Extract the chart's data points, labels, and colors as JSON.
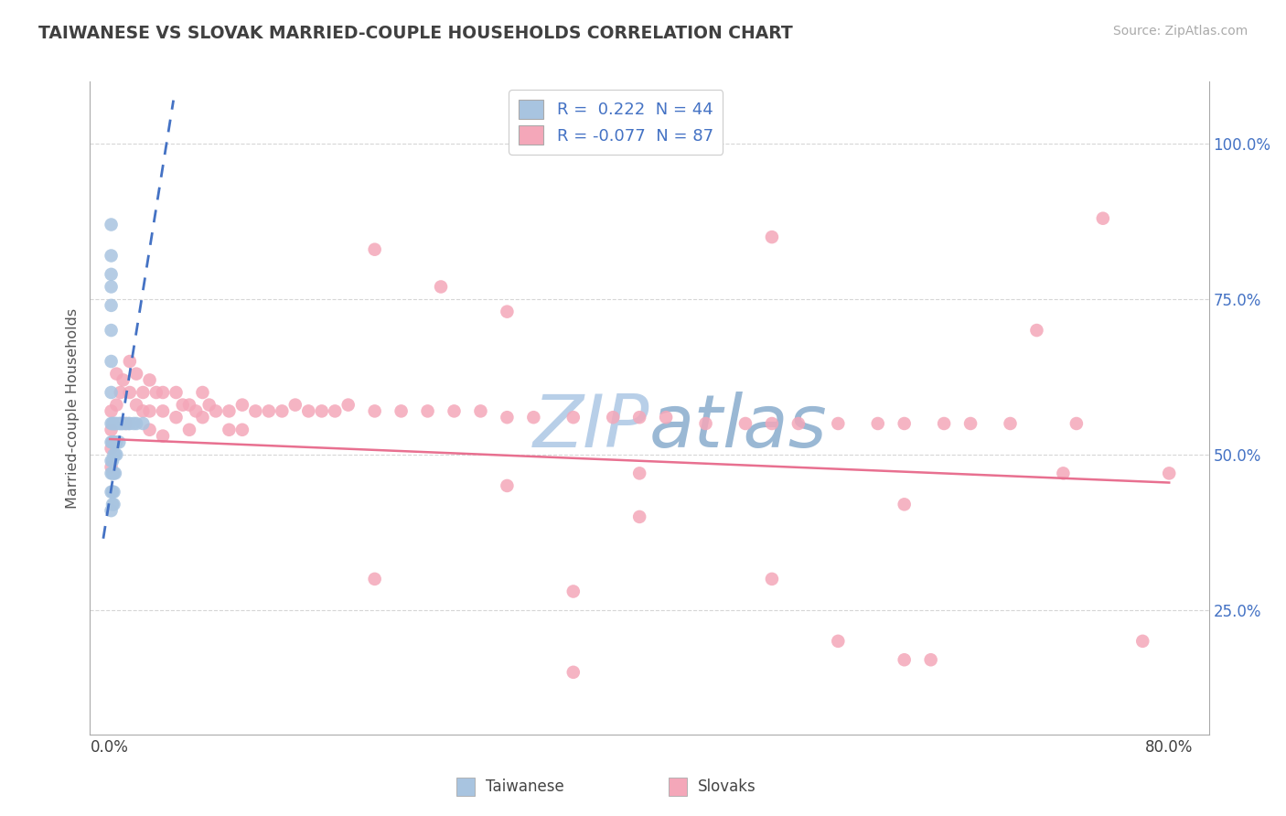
{
  "title": "TAIWANESE VS SLOVAK MARRIED-COUPLE HOUSEHOLDS CORRELATION CHART",
  "source": "Source: ZipAtlas.com",
  "ylabel": "Married-couple Households",
  "ytick_labels": [
    "25.0%",
    "50.0%",
    "75.0%",
    "100.0%"
  ],
  "ytick_values": [
    0.25,
    0.5,
    0.75,
    1.0
  ],
  "xtick_labels": [
    "0.0%",
    "80.0%"
  ],
  "xtick_values": [
    0.0,
    0.8
  ],
  "xlim": [
    -0.015,
    0.83
  ],
  "ylim": [
    0.05,
    1.1
  ],
  "legend_label1": "R =  0.222  N = 44",
  "legend_label2": "R = -0.077  N = 87",
  "legend_group1": "Taiwanese",
  "legend_group2": "Slovaks",
  "color_taiwanese": "#a8c4e0",
  "color_slovak": "#f4a7b9",
  "color_trend1": "#4472c4",
  "color_trend2": "#e87090",
  "watermark_color": "#ccd9e8",
  "background_color": "#ffffff",
  "grid_color": "#cccccc",
  "title_color": "#404040",
  "axis_label_color": "#555555",
  "ytick_color": "#4472c4",
  "xtick_color": "#404040",
  "legend_text_color": "#4472c4",
  "legend_r_eq_color": "#333333",
  "tw_trend_x": [
    -0.005,
    0.048
  ],
  "tw_trend_y": [
    0.365,
    1.07
  ],
  "sk_trend_x": [
    0.0,
    0.8
  ],
  "sk_trend_y": [
    0.525,
    0.455
  ],
  "taiwanese_x": [
    0.001,
    0.001,
    0.001,
    0.001,
    0.001,
    0.001,
    0.001,
    0.001,
    0.001,
    0.001,
    0.001,
    0.001,
    0.001,
    0.001,
    0.002,
    0.002,
    0.002,
    0.002,
    0.002,
    0.002,
    0.003,
    0.003,
    0.003,
    0.003,
    0.003,
    0.003,
    0.004,
    0.004,
    0.004,
    0.004,
    0.005,
    0.005,
    0.005,
    0.007,
    0.007,
    0.008,
    0.009,
    0.01,
    0.012,
    0.014,
    0.015,
    0.018,
    0.02,
    0.025
  ],
  "taiwanese_y": [
    0.87,
    0.82,
    0.79,
    0.77,
    0.74,
    0.7,
    0.65,
    0.6,
    0.55,
    0.52,
    0.49,
    0.47,
    0.44,
    0.41,
    0.55,
    0.52,
    0.49,
    0.47,
    0.44,
    0.42,
    0.55,
    0.52,
    0.5,
    0.47,
    0.44,
    0.42,
    0.55,
    0.52,
    0.5,
    0.47,
    0.55,
    0.52,
    0.5,
    0.55,
    0.52,
    0.55,
    0.55,
    0.55,
    0.55,
    0.55,
    0.55,
    0.55,
    0.55,
    0.55
  ],
  "slovak_x": [
    0.001,
    0.001,
    0.001,
    0.001,
    0.002,
    0.005,
    0.005,
    0.008,
    0.01,
    0.012,
    0.015,
    0.015,
    0.02,
    0.02,
    0.025,
    0.025,
    0.03,
    0.03,
    0.03,
    0.035,
    0.04,
    0.04,
    0.04,
    0.05,
    0.05,
    0.055,
    0.06,
    0.06,
    0.065,
    0.07,
    0.07,
    0.075,
    0.08,
    0.09,
    0.09,
    0.1,
    0.1,
    0.11,
    0.12,
    0.13,
    0.14,
    0.15,
    0.16,
    0.17,
    0.18,
    0.2,
    0.22,
    0.24,
    0.26,
    0.28,
    0.3,
    0.32,
    0.35,
    0.38,
    0.4,
    0.42,
    0.45,
    0.48,
    0.5,
    0.52,
    0.55,
    0.58,
    0.6,
    0.63,
    0.65,
    0.68,
    0.7,
    0.73,
    0.75,
    0.78,
    0.8,
    0.2,
    0.25,
    0.3,
    0.35,
    0.4,
    0.5,
    0.55,
    0.6,
    0.72,
    0.3,
    0.2,
    0.35,
    0.4,
    0.5,
    0.6,
    0.62
  ],
  "slovak_y": [
    0.57,
    0.54,
    0.51,
    0.48,
    0.52,
    0.63,
    0.58,
    0.6,
    0.62,
    0.55,
    0.65,
    0.6,
    0.63,
    0.58,
    0.6,
    0.57,
    0.62,
    0.57,
    0.54,
    0.6,
    0.6,
    0.57,
    0.53,
    0.6,
    0.56,
    0.58,
    0.58,
    0.54,
    0.57,
    0.6,
    0.56,
    0.58,
    0.57,
    0.57,
    0.54,
    0.58,
    0.54,
    0.57,
    0.57,
    0.57,
    0.58,
    0.57,
    0.57,
    0.57,
    0.58,
    0.57,
    0.57,
    0.57,
    0.57,
    0.57,
    0.56,
    0.56,
    0.56,
    0.56,
    0.56,
    0.56,
    0.55,
    0.55,
    0.55,
    0.55,
    0.55,
    0.55,
    0.55,
    0.55,
    0.55,
    0.55,
    0.7,
    0.55,
    0.88,
    0.2,
    0.47,
    0.83,
    0.77,
    0.73,
    0.15,
    0.4,
    0.85,
    0.2,
    0.42,
    0.47,
    0.45,
    0.3,
    0.28,
    0.47,
    0.3,
    0.17,
    0.17
  ]
}
